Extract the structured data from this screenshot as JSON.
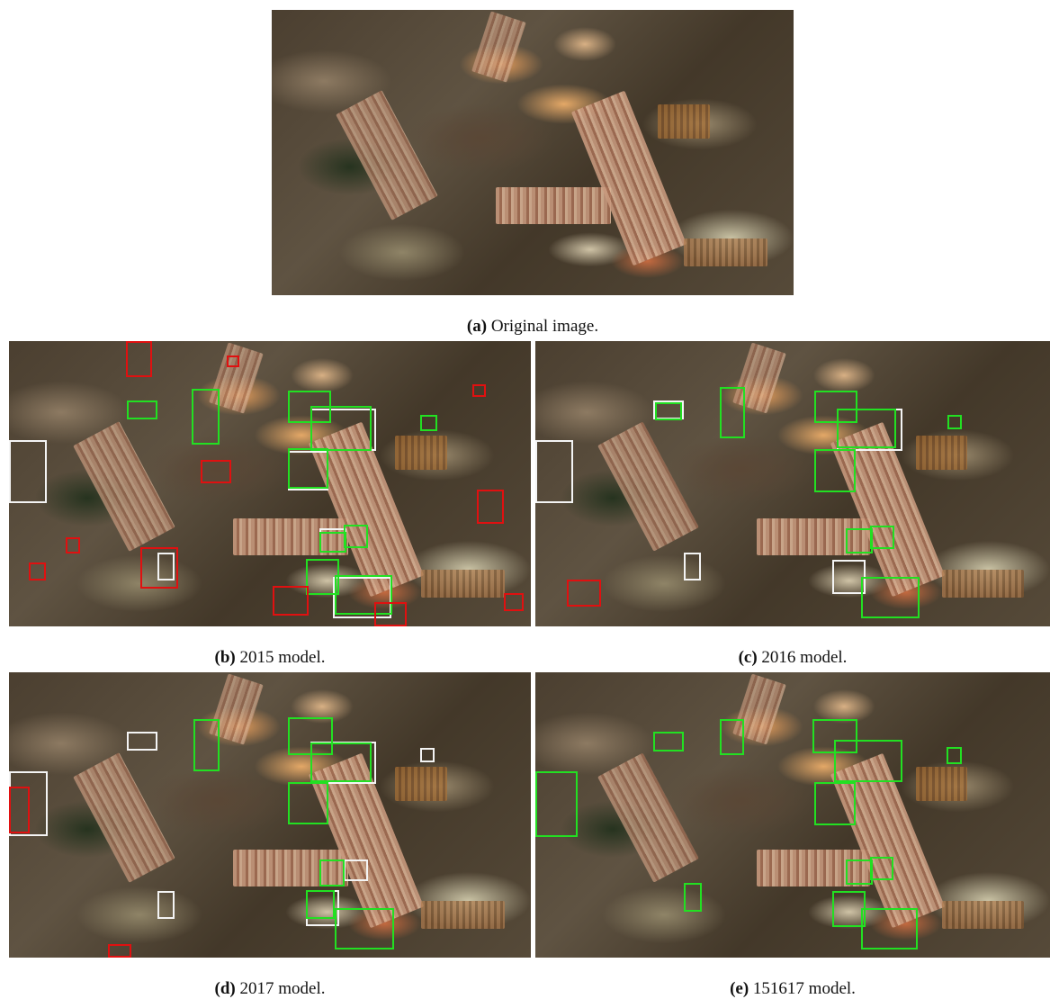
{
  "captions": {
    "a": {
      "tag": "(a)",
      "text": "Original image."
    },
    "b": {
      "tag": "(b)",
      "text": "2015 model."
    },
    "c": {
      "tag": "(c)",
      "text": "2016 model."
    },
    "d": {
      "tag": "(d)",
      "text": "2017 model."
    },
    "e": {
      "tag": "(e)",
      "text": "151617 model."
    }
  },
  "colors": {
    "ground_truth_box": "#f4f4f4",
    "correct_detection_box": "#22e022",
    "false_detection_box": "#e01010"
  }
}
